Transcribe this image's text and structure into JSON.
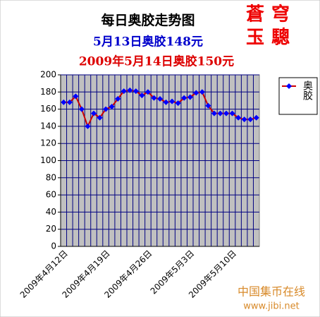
{
  "chart_data": {
    "type": "line",
    "title": "每日奥胶走势图",
    "subtitle": "5月13日奥胶148元",
    "subtitle2": "2009年5月14日奥胶150元",
    "stamp": [
      "蒼穹",
      "玉驄"
    ],
    "watermark": {
      "name": "中国集币在线",
      "url": "www.jibi.net"
    },
    "categories": [
      "2009年4月12日",
      null,
      null,
      null,
      null,
      null,
      null,
      "2009年4月19日",
      null,
      null,
      null,
      null,
      null,
      null,
      "2009年4月26日",
      null,
      null,
      null,
      null,
      null,
      null,
      "2009年5月3日",
      null,
      null,
      null,
      null,
      null,
      null,
      "2009年5月10日",
      null,
      null,
      null,
      null
    ],
    "series": [
      {
        "name": "奥胶",
        "color": "#0000ff",
        "line_color": "#cc0000",
        "values": [
          168,
          168,
          175,
          160,
          140,
          155,
          150,
          160,
          163,
          172,
          181,
          182,
          181,
          176,
          180,
          173,
          172,
          168,
          169,
          167,
          173,
          174,
          179,
          180,
          164,
          155,
          155,
          155,
          155,
          150,
          148,
          148,
          150
        ]
      }
    ],
    "ylim": [
      0,
      200
    ],
    "yticks": [
      0,
      20,
      40,
      60,
      80,
      100,
      120,
      140,
      160,
      180,
      200
    ],
    "grid": true,
    "legend": "right"
  }
}
